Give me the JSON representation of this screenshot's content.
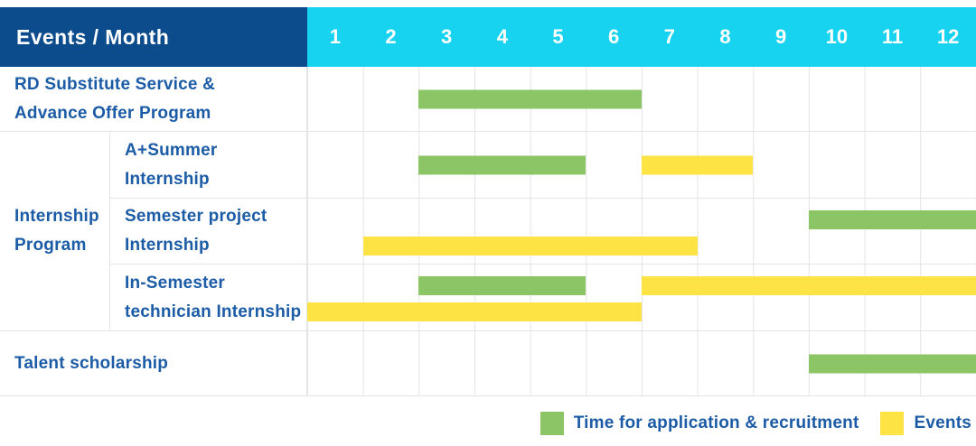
{
  "header": {
    "label": "Events / Month",
    "months": [
      "1",
      "2",
      "3",
      "4",
      "5",
      "6",
      "7",
      "8",
      "9",
      "10",
      "11",
      "12"
    ]
  },
  "legend": {
    "items": [
      {
        "key": "application",
        "label": "Time for application & recruitment",
        "color": "#8cc566"
      },
      {
        "key": "events",
        "label": "Events",
        "color": "#fde344"
      }
    ]
  },
  "colors": {
    "header_bg": "#0d4c8c",
    "months_bg": "#17d3f0",
    "header_text": "#ffffff",
    "label_text": "#1c5ca6",
    "grid_line": "#e5e5e5",
    "application_green": "#8cc566",
    "events_yellow": "#fde344"
  },
  "chart_data": {
    "type": "bar",
    "subtype": "gantt-schedule",
    "title": "Events / Month",
    "x_axis": {
      "label": "Month",
      "categories": [
        "1",
        "2",
        "3",
        "4",
        "5",
        "6",
        "7",
        "8",
        "9",
        "10",
        "11",
        "12"
      ],
      "range": [
        1,
        12
      ]
    },
    "grid": true,
    "legend_position": "bottom-right",
    "series": [
      {
        "key": "application",
        "name": "Time for application & recruitment",
        "color": "#8cc566"
      },
      {
        "key": "events",
        "name": "Events",
        "color": "#fde344"
      }
    ],
    "group_label": "Internship Program",
    "group_label_lines": [
      "Internship",
      "Program"
    ],
    "rows": [
      {
        "group": "",
        "label": "RD Substitute Service & Advance Offer Program",
        "label_lines": [
          "RD Substitute Service &",
          "Advance Offer Program"
        ],
        "bars": [
          {
            "series": "application",
            "start_month": 3,
            "end_month": 6,
            "line": 1
          }
        ]
      },
      {
        "group": "Internship Program",
        "label": "A+Summer Internship",
        "label_lines": [
          "A+Summer",
          "Internship"
        ],
        "bars": [
          {
            "series": "application",
            "start_month": 3,
            "end_month": 5,
            "line": 1
          },
          {
            "series": "events",
            "start_month": 7,
            "end_month": 8,
            "line": 1
          }
        ]
      },
      {
        "group": "Internship Program",
        "label": "Semester project Internship",
        "label_lines": [
          "Semester project",
          "Internship"
        ],
        "bars": [
          {
            "series": "application",
            "start_month": 10,
            "end_month": 12,
            "line": 1
          },
          {
            "series": "events",
            "start_month": 2,
            "end_month": 7,
            "line": 2
          }
        ]
      },
      {
        "group": "Internship Program",
        "label": "In-Semester technician Internship",
        "label_lines": [
          "In-Semester",
          "technician Internship"
        ],
        "bars": [
          {
            "series": "application",
            "start_month": 3,
            "end_month": 5,
            "line": 1
          },
          {
            "series": "events",
            "start_month": 7,
            "end_month": 12,
            "line": 1
          },
          {
            "series": "events",
            "start_month": 1,
            "end_month": 6,
            "line": 2
          }
        ]
      },
      {
        "group": "",
        "label": "Talent scholarship",
        "label_lines": [
          "Talent scholarship"
        ],
        "bars": [
          {
            "series": "application",
            "start_month": 10,
            "end_month": 12,
            "line": 1
          }
        ]
      }
    ]
  }
}
